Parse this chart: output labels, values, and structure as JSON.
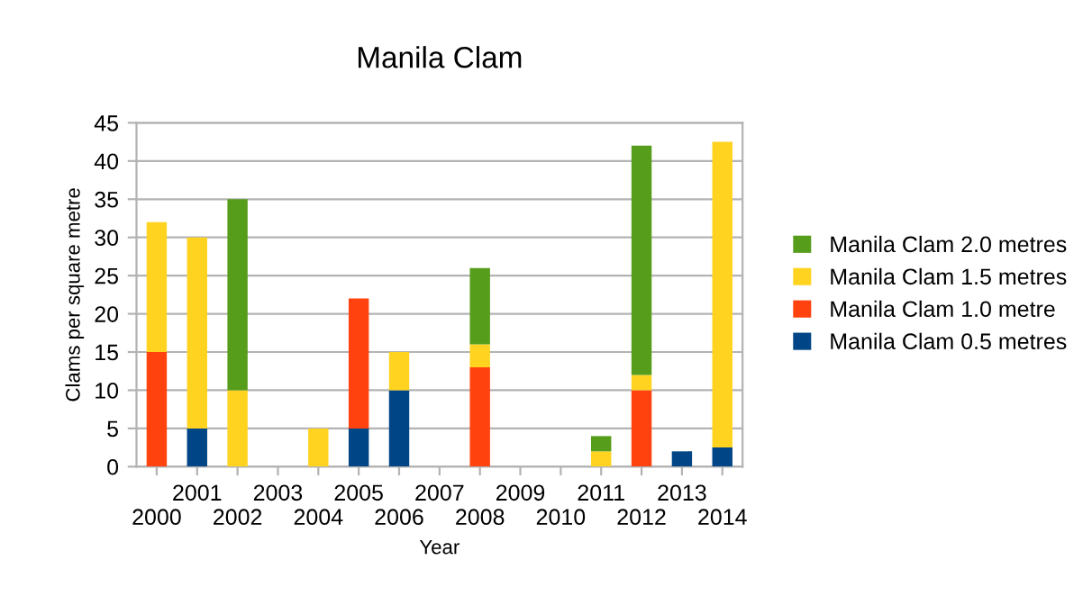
{
  "chart_data": {
    "type": "bar",
    "title": "Manila Clam",
    "xlabel": "Year",
    "ylabel": "Clams per square metre",
    "categories": [
      "2000",
      "2001",
      "2002",
      "2003",
      "2004",
      "2005",
      "2006",
      "2007",
      "2008",
      "2009",
      "2010",
      "2011",
      "2012",
      "2013",
      "2014"
    ],
    "stacked": true,
    "series": [
      {
        "name": "Manila Clam 0.5 metres",
        "color": "#004586",
        "values": [
          0,
          5,
          0,
          0,
          0,
          5,
          10,
          0,
          0,
          0,
          0,
          0,
          0,
          2,
          2.5
        ]
      },
      {
        "name": "Manila Clam 1.0 metre",
        "color": "#ff420e",
        "values": [
          15,
          0,
          0,
          0,
          0,
          17,
          0,
          0,
          13,
          0,
          0,
          0,
          10,
          0,
          0
        ]
      },
      {
        "name": "Manila Clam 1.5 metres",
        "color": "#ffd320",
        "values": [
          17,
          25,
          10,
          0,
          5,
          0,
          5,
          0,
          3,
          0,
          0,
          2,
          2,
          0,
          40
        ]
      },
      {
        "name": "Manila Clam 2.0 metres",
        "color": "#579d1c",
        "values": [
          0,
          0,
          25,
          0,
          0,
          0,
          0,
          0,
          10,
          0,
          0,
          2,
          30,
          0,
          0
        ]
      }
    ],
    "ylim": [
      0,
      45
    ],
    "yticks": [
      0,
      5,
      10,
      15,
      20,
      25,
      30,
      35,
      40,
      45
    ],
    "grid": "y",
    "legend": "right"
  }
}
